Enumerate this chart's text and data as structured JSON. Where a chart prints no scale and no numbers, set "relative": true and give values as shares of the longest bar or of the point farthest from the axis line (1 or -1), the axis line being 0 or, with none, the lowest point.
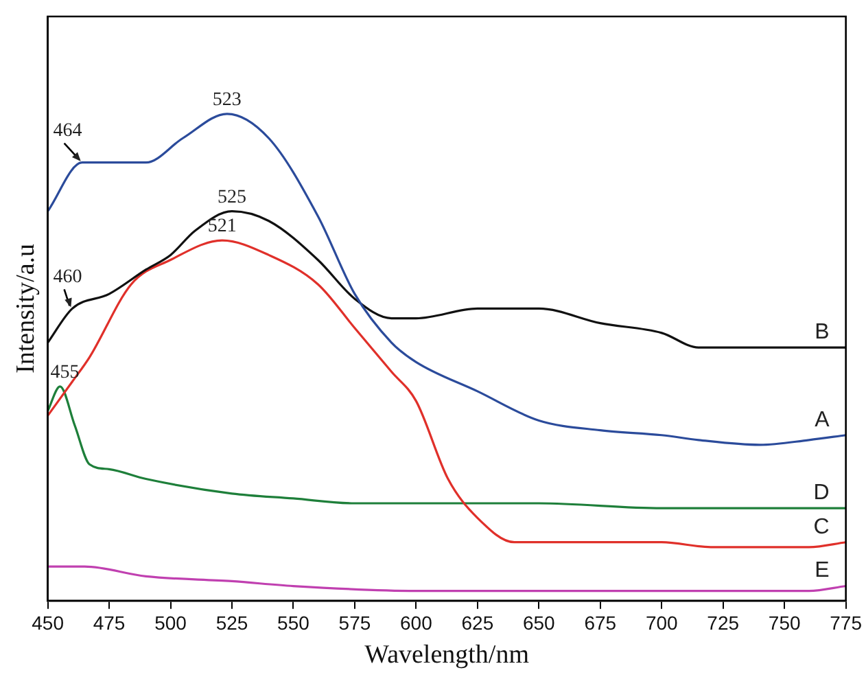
{
  "chart_data": {
    "type": "line",
    "xlabel": "Wavelength/nm",
    "ylabel": "Intensity/a.u",
    "relative": true,
    "xlim": [
      450,
      775
    ],
    "xticks": [
      450,
      475,
      500,
      525,
      550,
      575,
      600,
      625,
      650,
      675,
      700,
      725,
      750,
      775
    ],
    "grid": false,
    "legend": false,
    "marker": "none",
    "line_style": "solid",
    "series": [
      {
        "name": "A",
        "color": "#2b4b9b",
        "x": [
          450,
          464,
          475,
          490,
          505,
          523,
          540,
          560,
          575,
          590,
          600,
          625,
          650,
          675,
          700,
          715,
          740,
          760,
          775
        ],
        "values": [
          0.8,
          0.9,
          0.9,
          0.9,
          0.95,
          1.0,
          0.95,
          0.79,
          0.63,
          0.53,
          0.49,
          0.43,
          0.37,
          0.35,
          0.34,
          0.33,
          0.32,
          0.33,
          0.34
        ]
      },
      {
        "name": "B",
        "color": "#111111",
        "x": [
          450,
          460,
          475,
          490,
          500,
          510,
          525,
          540,
          560,
          575,
          590,
          600,
          625,
          650,
          675,
          700,
          715,
          740,
          775
        ],
        "values": [
          0.53,
          0.6,
          0.63,
          0.68,
          0.71,
          0.76,
          0.8,
          0.78,
          0.7,
          0.62,
          0.58,
          0.58,
          0.6,
          0.6,
          0.57,
          0.55,
          0.52,
          0.52,
          0.52
        ]
      },
      {
        "name": "C",
        "color": "#e0302a",
        "x": [
          450,
          460,
          467,
          484,
          500,
          521,
          540,
          560,
          575,
          590,
          600,
          613,
          625,
          640,
          650,
          680,
          700,
          720,
          740,
          760,
          775
        ],
        "values": [
          0.38,
          0.45,
          0.5,
          0.65,
          0.7,
          0.74,
          0.71,
          0.65,
          0.56,
          0.47,
          0.41,
          0.25,
          0.17,
          0.12,
          0.12,
          0.12,
          0.12,
          0.11,
          0.11,
          0.11,
          0.12
        ]
      },
      {
        "name": "D",
        "color": "#1e7f3a",
        "x": [
          450,
          455,
          461,
          467,
          475,
          490,
          525,
          550,
          575,
          600,
          625,
          650,
          700,
          740,
          775
        ],
        "values": [
          0.39,
          0.44,
          0.36,
          0.28,
          0.27,
          0.25,
          0.22,
          0.21,
          0.2,
          0.2,
          0.2,
          0.2,
          0.19,
          0.19,
          0.19
        ]
      },
      {
        "name": "E",
        "color": "#c040b0",
        "x": [
          450,
          465,
          490,
          525,
          550,
          600,
          700,
          760,
          775
        ],
        "values": [
          0.07,
          0.07,
          0.05,
          0.04,
          0.03,
          0.02,
          0.02,
          0.02,
          0.03
        ]
      }
    ],
    "annotations": [
      {
        "text": "523",
        "x": 523,
        "y": 1.0
      },
      {
        "text": "525",
        "x": 525,
        "y": 0.8
      },
      {
        "text": "521",
        "x": 521,
        "y": 0.74
      },
      {
        "text": "464",
        "x": 464,
        "y": 0.9
      },
      {
        "text": "460",
        "x": 460,
        "y": 0.6
      },
      {
        "text": "455",
        "x": 455,
        "y": 0.44
      }
    ]
  }
}
